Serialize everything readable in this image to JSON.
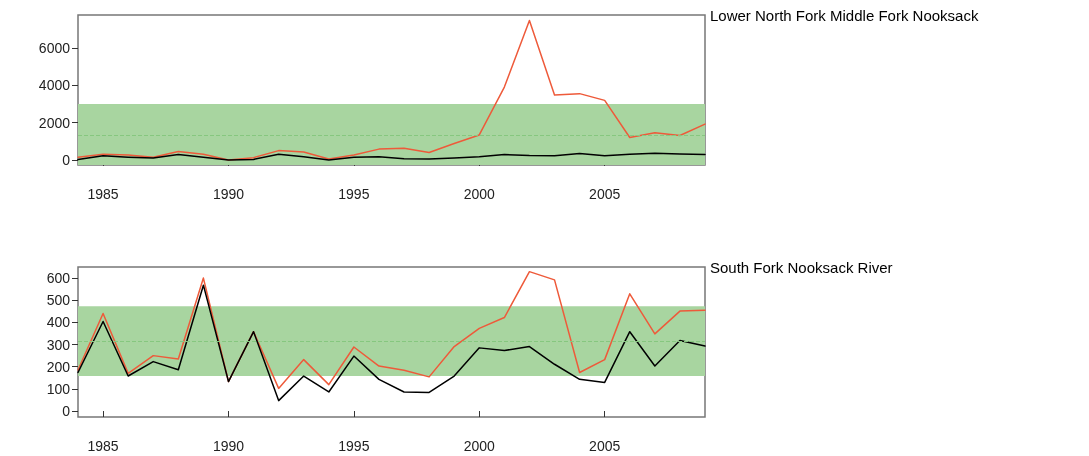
{
  "chart_data": [
    {
      "type": "line",
      "title": "Lower North Fork Middle Fork Nooksack",
      "x": [
        1984,
        1985,
        1986,
        1987,
        1988,
        1989,
        1990,
        1991,
        1992,
        1993,
        1994,
        1995,
        1996,
        1997,
        1998,
        1999,
        2000,
        2001,
        2002,
        2003,
        2004,
        2005,
        2006,
        2007,
        2008,
        2009
      ],
      "series": [
        {
          "color": "#ee5a3a",
          "values": [
            150,
            300,
            270,
            150,
            450,
            300,
            0,
            120,
            500,
            430,
            50,
            270,
            580,
            630,
            400,
            880,
            1340,
            3900,
            7470,
            3480,
            3550,
            3190,
            1200,
            1460,
            1310,
            1920
          ]
        },
        {
          "color": "#000000",
          "values": [
            20,
            220,
            150,
            100,
            290,
            150,
            0,
            30,
            310,
            170,
            0,
            150,
            170,
            70,
            50,
            100,
            170,
            290,
            240,
            220,
            340,
            220,
            310,
            360,
            320,
            290
          ]
        }
      ],
      "xlim": [
        1984,
        2009
      ],
      "xticks": [
        1985,
        1990,
        1995,
        2000,
        2005
      ],
      "ylim": [
        -270,
        7760
      ],
      "yticks": [
        0,
        2000,
        4000,
        6000
      ],
      "bands": [
        {
          "axis": "y",
          "from": -270,
          "to": 3000,
          "color": "#a8d5a0"
        }
      ],
      "ref_lines": [
        {
          "axis": "y",
          "value": 1340,
          "color": "#86c77f",
          "line_style": "dashed"
        }
      ],
      "grid": false,
      "marker": "none",
      "line_style": "solid"
    },
    {
      "type": "line",
      "title": "South Fork Nooksack River",
      "x": [
        1984,
        1985,
        1986,
        1987,
        1988,
        1989,
        1990,
        1991,
        1992,
        1993,
        1994,
        1995,
        1996,
        1997,
        1998,
        1999,
        2000,
        2001,
        2002,
        2003,
        2004,
        2005,
        2006,
        2007,
        2008,
        2009
      ],
      "series": [
        {
          "color": "#ee5a3a",
          "values": [
            185,
            440,
            170,
            250,
            235,
            600,
            133,
            358,
            102,
            232,
            119,
            289,
            203,
            184,
            154,
            291,
            373,
            422,
            629,
            592,
            174,
            232,
            529,
            348,
            451,
            455
          ]
        },
        {
          "color": "#000000",
          "values": [
            174,
            404,
            158,
            223,
            186,
            568,
            133,
            358,
            47,
            158,
            86,
            248,
            143,
            86,
            84,
            158,
            285,
            273,
            291,
            211,
            143,
            129,
            358,
            203,
            318,
            293
          ]
        }
      ],
      "xlim": [
        1984,
        2009
      ],
      "xticks": [
        1985,
        1990,
        1995,
        2000,
        2005
      ],
      "ylim": [
        -27,
        650
      ],
      "yticks": [
        0,
        100,
        200,
        300,
        400,
        500,
        600
      ],
      "bands": [
        {
          "axis": "y",
          "from": 158,
          "to": 473,
          "color": "#a8d5a0"
        }
      ],
      "ref_lines": [
        {
          "axis": "y",
          "value": 313,
          "color": "#86c77f",
          "line_style": "dashed"
        }
      ],
      "grid": false,
      "marker": "none",
      "line_style": "solid"
    }
  ]
}
